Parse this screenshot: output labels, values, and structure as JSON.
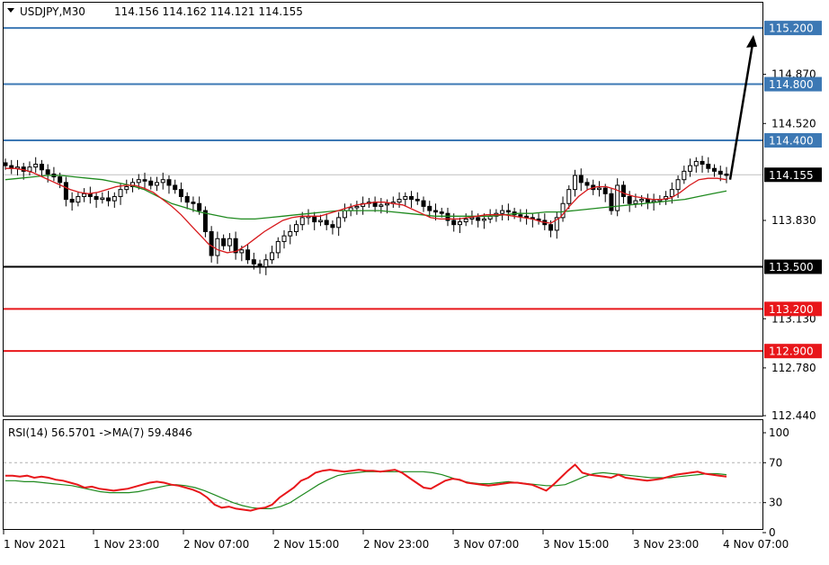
{
  "header": {
    "symbol": "USDJPY,M30",
    "ohlc": "114.156 114.162 114.121 114.155"
  },
  "rsi_header": {
    "text": "RSI(14) 56.5701  ->MA(7) 59.4846"
  },
  "colors": {
    "blue_level": "#3c78b4",
    "red_level": "#e8161a",
    "black_level": "#000000",
    "ma_fast": "#d7191c",
    "ma_slow": "#1f8a1f",
    "rsi": "#e8161a",
    "rsi_ma": "#1f8a1f",
    "candle": "#000000"
  },
  "chart_data": [
    {
      "type": "line",
      "name": "price",
      "ylim": [
        112.44,
        115.38
      ],
      "y_ticks": [
        "114.870",
        "114.520",
        "113.830",
        "113.130",
        "112.780",
        "112.440"
      ],
      "x_ticks": [
        "1 Nov 2021",
        "1 Nov 23:00",
        "2 Nov 07:00",
        "2 Nov 15:00",
        "2 Nov 23:00",
        "3 Nov 07:00",
        "3 Nov 15:00",
        "3 Nov 23:00",
        "4 Nov 07:00"
      ],
      "current_price": {
        "value": 114.155,
        "label": "114.155"
      },
      "levels": [
        {
          "value": 115.2,
          "label": "115.200",
          "color": "#3c78b4"
        },
        {
          "value": 114.8,
          "label": "114.800",
          "color": "#3c78b4"
        },
        {
          "value": 114.4,
          "label": "114.400",
          "color": "#3c78b4"
        },
        {
          "value": 113.5,
          "label": "113.500",
          "color": "#000000"
        },
        {
          "value": 113.2,
          "label": "113.200",
          "color": "#e8161a"
        },
        {
          "value": 112.9,
          "label": "112.900",
          "color": "#e8161a"
        }
      ],
      "close_series": [
        114.22,
        114.2,
        114.21,
        114.18,
        114.21,
        114.23,
        114.19,
        114.16,
        114.14,
        114.1,
        113.98,
        113.96,
        114.0,
        114.02,
        114.0,
        113.98,
        113.99,
        113.97,
        114.0,
        114.05,
        114.07,
        114.1,
        114.12,
        114.11,
        114.08,
        114.1,
        114.12,
        114.08,
        114.05,
        114.0,
        113.96,
        113.95,
        113.9,
        113.75,
        113.58,
        113.7,
        113.65,
        113.7,
        113.6,
        113.62,
        113.55,
        113.52,
        113.5,
        113.55,
        113.6,
        113.68,
        113.72,
        113.75,
        113.8,
        113.85,
        113.86,
        113.82,
        113.83,
        113.8,
        113.78,
        113.85,
        113.9,
        113.92,
        113.93,
        113.95,
        113.96,
        113.93,
        113.94,
        113.95,
        113.96,
        113.98,
        114.0,
        113.98,
        113.97,
        113.93,
        113.9,
        113.89,
        113.88,
        113.83,
        113.8,
        113.82,
        113.84,
        113.85,
        113.83,
        113.84,
        113.86,
        113.88,
        113.9,
        113.89,
        113.87,
        113.86,
        113.85,
        113.84,
        113.83,
        113.8,
        113.76,
        113.85,
        113.95,
        114.05,
        114.15,
        114.1,
        114.08,
        114.05,
        114.06,
        114.02,
        113.9,
        114.08,
        114.0,
        113.95,
        113.97,
        113.98,
        113.96,
        113.97,
        113.98,
        114.0,
        114.05,
        114.12,
        114.18,
        114.22,
        114.25,
        114.23,
        114.2,
        114.18,
        114.16,
        114.155
      ],
      "ma_fast_series": [
        114.2,
        114.2,
        114.19,
        114.17,
        114.14,
        114.11,
        114.08,
        114.05,
        114.03,
        114.02,
        114.03,
        114.05,
        114.07,
        114.08,
        114.08,
        114.06,
        114.03,
        113.98,
        113.93,
        113.87,
        113.8,
        113.73,
        113.66,
        113.62,
        113.6,
        113.61,
        113.65,
        113.7,
        113.75,
        113.79,
        113.83,
        113.85,
        113.86,
        113.86,
        113.86,
        113.88,
        113.9,
        113.92,
        113.94,
        113.95,
        113.96,
        113.96,
        113.95,
        113.94,
        113.91,
        113.88,
        113.85,
        113.84,
        113.84,
        113.84,
        113.85,
        113.86,
        113.87,
        113.87,
        113.87,
        113.86,
        113.85,
        113.84,
        113.82,
        113.81,
        113.85,
        113.93,
        114.0,
        114.05,
        114.07,
        114.07,
        114.05,
        114.02,
        114.0,
        113.99,
        113.98,
        113.98,
        113.99,
        114.03,
        114.08,
        114.12,
        114.13,
        114.13,
        114.12
      ],
      "ma_slow_series": [
        114.12,
        114.13,
        114.14,
        114.15,
        114.15,
        114.14,
        114.13,
        114.12,
        114.1,
        114.08,
        114.05,
        114.0,
        113.95,
        113.92,
        113.89,
        113.87,
        113.85,
        113.84,
        113.84,
        113.85,
        113.86,
        113.87,
        113.88,
        113.89,
        113.9,
        113.9,
        113.9,
        113.9,
        113.89,
        113.88,
        113.87,
        113.86,
        113.86,
        113.86,
        113.86,
        113.86,
        113.87,
        113.88,
        113.88,
        113.89,
        113.89,
        113.9,
        113.91,
        113.92,
        113.93,
        113.94,
        113.95,
        113.96,
        113.97,
        113.98,
        114.0,
        114.02,
        114.04
      ],
      "arrow": {
        "from": 114.12,
        "to": 115.15
      }
    },
    {
      "type": "line",
      "name": "RSI(14)",
      "ylim": [
        0,
        100
      ],
      "y_ticks": [
        "100",
        "70",
        "30",
        "0"
      ],
      "levels": [
        70,
        30
      ],
      "rsi_series": [
        57,
        57,
        56,
        57,
        55,
        56,
        55,
        53,
        52,
        50,
        48,
        45,
        46,
        44,
        43,
        42,
        43,
        44,
        46,
        48,
        50,
        51,
        50,
        48,
        47,
        45,
        43,
        40,
        35,
        28,
        25,
        26,
        24,
        23,
        22,
        24,
        25,
        28,
        35,
        40,
        45,
        52,
        55,
        60,
        62,
        63,
        62,
        61,
        62,
        63,
        62,
        62,
        61,
        62,
        63,
        60,
        55,
        50,
        45,
        44,
        48,
        52,
        54,
        53,
        50,
        49,
        48,
        47,
        48,
        49,
        50,
        50,
        49,
        48,
        45,
        42,
        48,
        55,
        62,
        68,
        60,
        58,
        57,
        56,
        55,
        58,
        55,
        54,
        53,
        52,
        53,
        54,
        56,
        58,
        59,
        60,
        61,
        59,
        58,
        57,
        56
      ],
      "ma_series": [
        52,
        52,
        51,
        51,
        50,
        49,
        48,
        47,
        45,
        43,
        41,
        40,
        40,
        40,
        41,
        43,
        45,
        47,
        48,
        47,
        45,
        42,
        38,
        34,
        30,
        27,
        25,
        24,
        24,
        26,
        30,
        36,
        42,
        48,
        53,
        57,
        59,
        60,
        61,
        61,
        61,
        61,
        61,
        61,
        61,
        60,
        58,
        55,
        52,
        50,
        49,
        49,
        50,
        51,
        50,
        49,
        48,
        47,
        47,
        48,
        52,
        56,
        59,
        60,
        59,
        58,
        57,
        56,
        55,
        55,
        55,
        56,
        57,
        58,
        59,
        59,
        58
      ]
    }
  ]
}
